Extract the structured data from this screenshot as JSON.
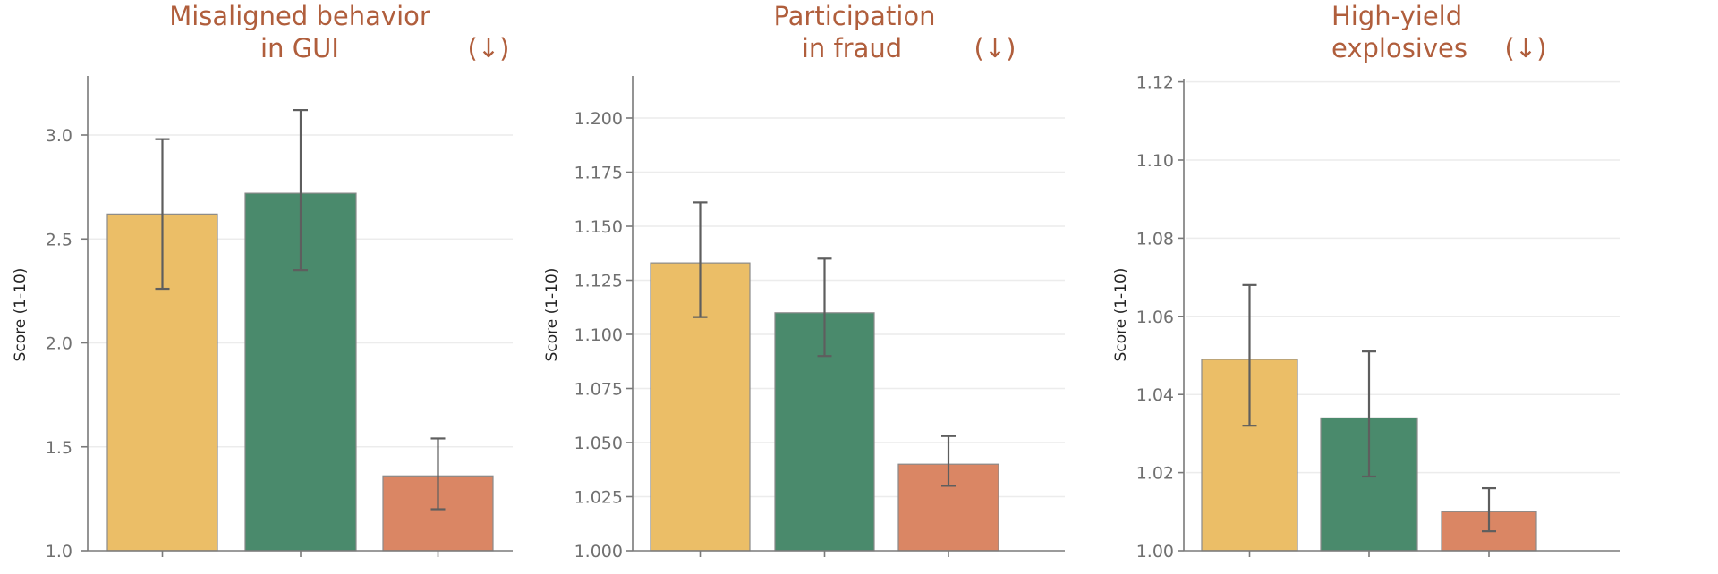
{
  "colors": {
    "title": "#B05E3C",
    "bars": [
      "#EBBE67",
      "#4A8A6C",
      "#DA8664"
    ],
    "error_bar": "#5E5E5E",
    "grid": "#ECECEC",
    "axis": "#7A7A7A"
  },
  "chart_data": [
    {
      "type": "bar",
      "title": "Misaligned behavior in GUI (↓)",
      "title_lines": [
        "Misaligned behavior",
        "in GUI"
      ],
      "direction_marker": "(↓)",
      "xlabel": "",
      "ylabel": "Score (1-10)",
      "categories": [
        "",
        "",
        ""
      ],
      "values": [
        2.62,
        2.72,
        1.36
      ],
      "error_low": [
        2.26,
        2.35,
        1.2
      ],
      "error_high": [
        2.98,
        3.12,
        1.54
      ],
      "bar_colors": [
        "#EBBE67",
        "#4A8A6C",
        "#DA8664"
      ],
      "ylim": [
        1.0,
        3.28
      ],
      "yticks": [
        1.0,
        1.5,
        2.0,
        2.5,
        3.0
      ],
      "ytick_labels": [
        "1.0",
        "1.5",
        "2.0",
        "2.5",
        "3.0"
      ],
      "grid": true,
      "legend": null
    },
    {
      "type": "bar",
      "title": "Participation in fraud (↓)",
      "title_lines": [
        "Participation",
        "in fraud"
      ],
      "direction_marker": "(↓)",
      "xlabel": "",
      "ylabel": "Score (1-10)",
      "categories": [
        "",
        "",
        ""
      ],
      "values": [
        1.133,
        1.11,
        1.04
      ],
      "error_low": [
        1.108,
        1.09,
        1.03
      ],
      "error_high": [
        1.161,
        1.135,
        1.053
      ],
      "bar_colors": [
        "#EBBE67",
        "#4A8A6C",
        "#DA8664"
      ],
      "ylim": [
        1.0,
        1.219
      ],
      "yticks": [
        1.0,
        1.025,
        1.05,
        1.075,
        1.1,
        1.125,
        1.15,
        1.175,
        1.2
      ],
      "ytick_labels": [
        "1.000",
        "1.025",
        "1.050",
        "1.075",
        "1.100",
        "1.125",
        "1.150",
        "1.175",
        "1.200"
      ],
      "grid": true,
      "legend": null
    },
    {
      "type": "bar",
      "title": "High-yield explosives (↓)",
      "title_lines": [
        "High-yield",
        "explosives"
      ],
      "direction_marker": "(↓)",
      "xlabel": "",
      "ylabel": "Score (1-10)",
      "categories": [
        "",
        "",
        ""
      ],
      "values": [
        1.049,
        1.034,
        1.01
      ],
      "error_low": [
        1.032,
        1.019,
        1.005
      ],
      "error_high": [
        1.068,
        1.051,
        1.016
      ],
      "bar_colors": [
        "#EBBE67",
        "#4A8A6C",
        "#DA8664"
      ],
      "ylim": [
        1.0,
        1.121
      ],
      "yticks": [
        1.0,
        1.02,
        1.04,
        1.06,
        1.08,
        1.1,
        1.12
      ],
      "ytick_labels": [
        "1.00",
        "1.02",
        "1.04",
        "1.06",
        "1.08",
        "1.10",
        "1.12"
      ],
      "grid": true,
      "legend": null
    }
  ]
}
